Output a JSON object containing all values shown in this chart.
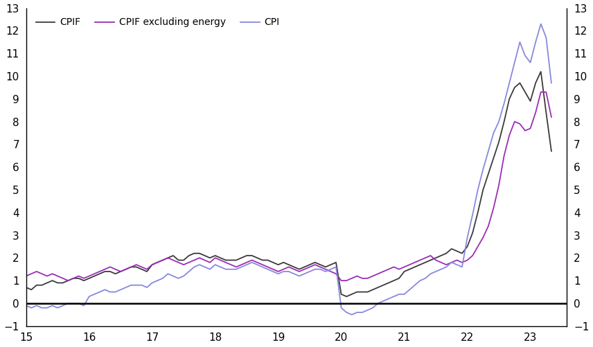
{
  "cpif_color": "#3a3a3a",
  "cpif_excl_color": "#9B2DB5",
  "cpi_color": "#8888DD",
  "ylim": [
    -1,
    13
  ],
  "yticks": [
    -1,
    0,
    1,
    2,
    3,
    4,
    5,
    6,
    7,
    8,
    9,
    10,
    11,
    12,
    13
  ],
  "xlim": [
    2015.0,
    2023.58
  ],
  "xticks": [
    15,
    16,
    17,
    18,
    19,
    20,
    21,
    22,
    23
  ],
  "legend_labels": [
    "CPIF",
    "CPIF excluding energy",
    "CPI"
  ],
  "background_color": "#ffffff",
  "cpif": [
    0.7,
    0.6,
    0.8,
    0.8,
    0.9,
    1.0,
    0.9,
    0.9,
    1.0,
    1.1,
    1.1,
    1.0,
    1.1,
    1.2,
    1.3,
    1.4,
    1.4,
    1.3,
    1.4,
    1.5,
    1.6,
    1.6,
    1.5,
    1.4,
    1.7,
    1.8,
    1.9,
    2.0,
    2.1,
    1.9,
    1.9,
    2.1,
    2.2,
    2.2,
    2.1,
    2.0,
    2.1,
    2.0,
    1.9,
    1.9,
    1.9,
    2.0,
    2.1,
    2.1,
    2.0,
    1.9,
    1.9,
    1.8,
    1.7,
    1.8,
    1.7,
    1.6,
    1.5,
    1.6,
    1.7,
    1.8,
    1.7,
    1.6,
    1.7,
    1.8,
    0.4,
    0.3,
    0.4,
    0.5,
    0.5,
    0.5,
    0.6,
    0.7,
    0.8,
    0.9,
    1.0,
    1.1,
    1.4,
    1.5,
    1.6,
    1.7,
    1.8,
    1.9,
    2.0,
    2.1,
    2.2,
    2.4,
    2.3,
    2.2,
    2.5,
    3.1,
    4.0,
    5.0,
    5.7,
    6.4,
    7.1,
    8.0,
    9.0,
    9.5,
    9.7,
    9.3,
    8.9,
    9.7,
    10.2,
    8.4,
    6.7
  ],
  "cpif_excl": [
    1.2,
    1.3,
    1.4,
    1.3,
    1.2,
    1.3,
    1.2,
    1.1,
    1.0,
    1.1,
    1.2,
    1.1,
    1.2,
    1.3,
    1.4,
    1.5,
    1.6,
    1.5,
    1.4,
    1.5,
    1.6,
    1.7,
    1.6,
    1.5,
    1.7,
    1.8,
    1.9,
    2.0,
    1.9,
    1.8,
    1.7,
    1.8,
    1.9,
    2.0,
    1.9,
    1.8,
    2.0,
    1.9,
    1.8,
    1.7,
    1.6,
    1.7,
    1.8,
    1.9,
    1.8,
    1.7,
    1.6,
    1.5,
    1.4,
    1.5,
    1.6,
    1.5,
    1.4,
    1.5,
    1.6,
    1.7,
    1.6,
    1.5,
    1.4,
    1.3,
    1.0,
    1.0,
    1.1,
    1.2,
    1.1,
    1.1,
    1.2,
    1.3,
    1.4,
    1.5,
    1.6,
    1.5,
    1.6,
    1.7,
    1.8,
    1.9,
    2.0,
    2.1,
    1.9,
    1.8,
    1.7,
    1.8,
    1.9,
    1.8,
    1.9,
    2.1,
    2.5,
    2.9,
    3.4,
    4.2,
    5.2,
    6.5,
    7.4,
    8.0,
    7.9,
    7.6,
    7.7,
    8.4,
    9.3,
    9.3,
    8.2
  ],
  "cpi": [
    -0.1,
    -0.2,
    -0.1,
    -0.2,
    -0.2,
    -0.1,
    -0.2,
    -0.1,
    0.0,
    0.0,
    0.0,
    -0.1,
    0.3,
    0.4,
    0.5,
    0.6,
    0.5,
    0.5,
    0.6,
    0.7,
    0.8,
    0.8,
    0.8,
    0.7,
    0.9,
    1.0,
    1.1,
    1.3,
    1.2,
    1.1,
    1.2,
    1.4,
    1.6,
    1.7,
    1.6,
    1.5,
    1.7,
    1.6,
    1.5,
    1.5,
    1.5,
    1.6,
    1.7,
    1.8,
    1.7,
    1.6,
    1.5,
    1.4,
    1.3,
    1.4,
    1.4,
    1.3,
    1.2,
    1.3,
    1.4,
    1.5,
    1.5,
    1.4,
    1.5,
    1.6,
    -0.2,
    -0.4,
    -0.5,
    -0.4,
    -0.4,
    -0.3,
    -0.2,
    0.0,
    0.1,
    0.2,
    0.3,
    0.4,
    0.4,
    0.6,
    0.8,
    1.0,
    1.1,
    1.3,
    1.4,
    1.5,
    1.6,
    1.8,
    1.7,
    1.6,
    2.9,
    3.9,
    5.0,
    5.9,
    6.7,
    7.5,
    8.0,
    8.8,
    9.7,
    10.6,
    11.5,
    10.9,
    10.6,
    11.5,
    12.3,
    11.7,
    9.7
  ],
  "start_year": 2015,
  "n_months": 101
}
